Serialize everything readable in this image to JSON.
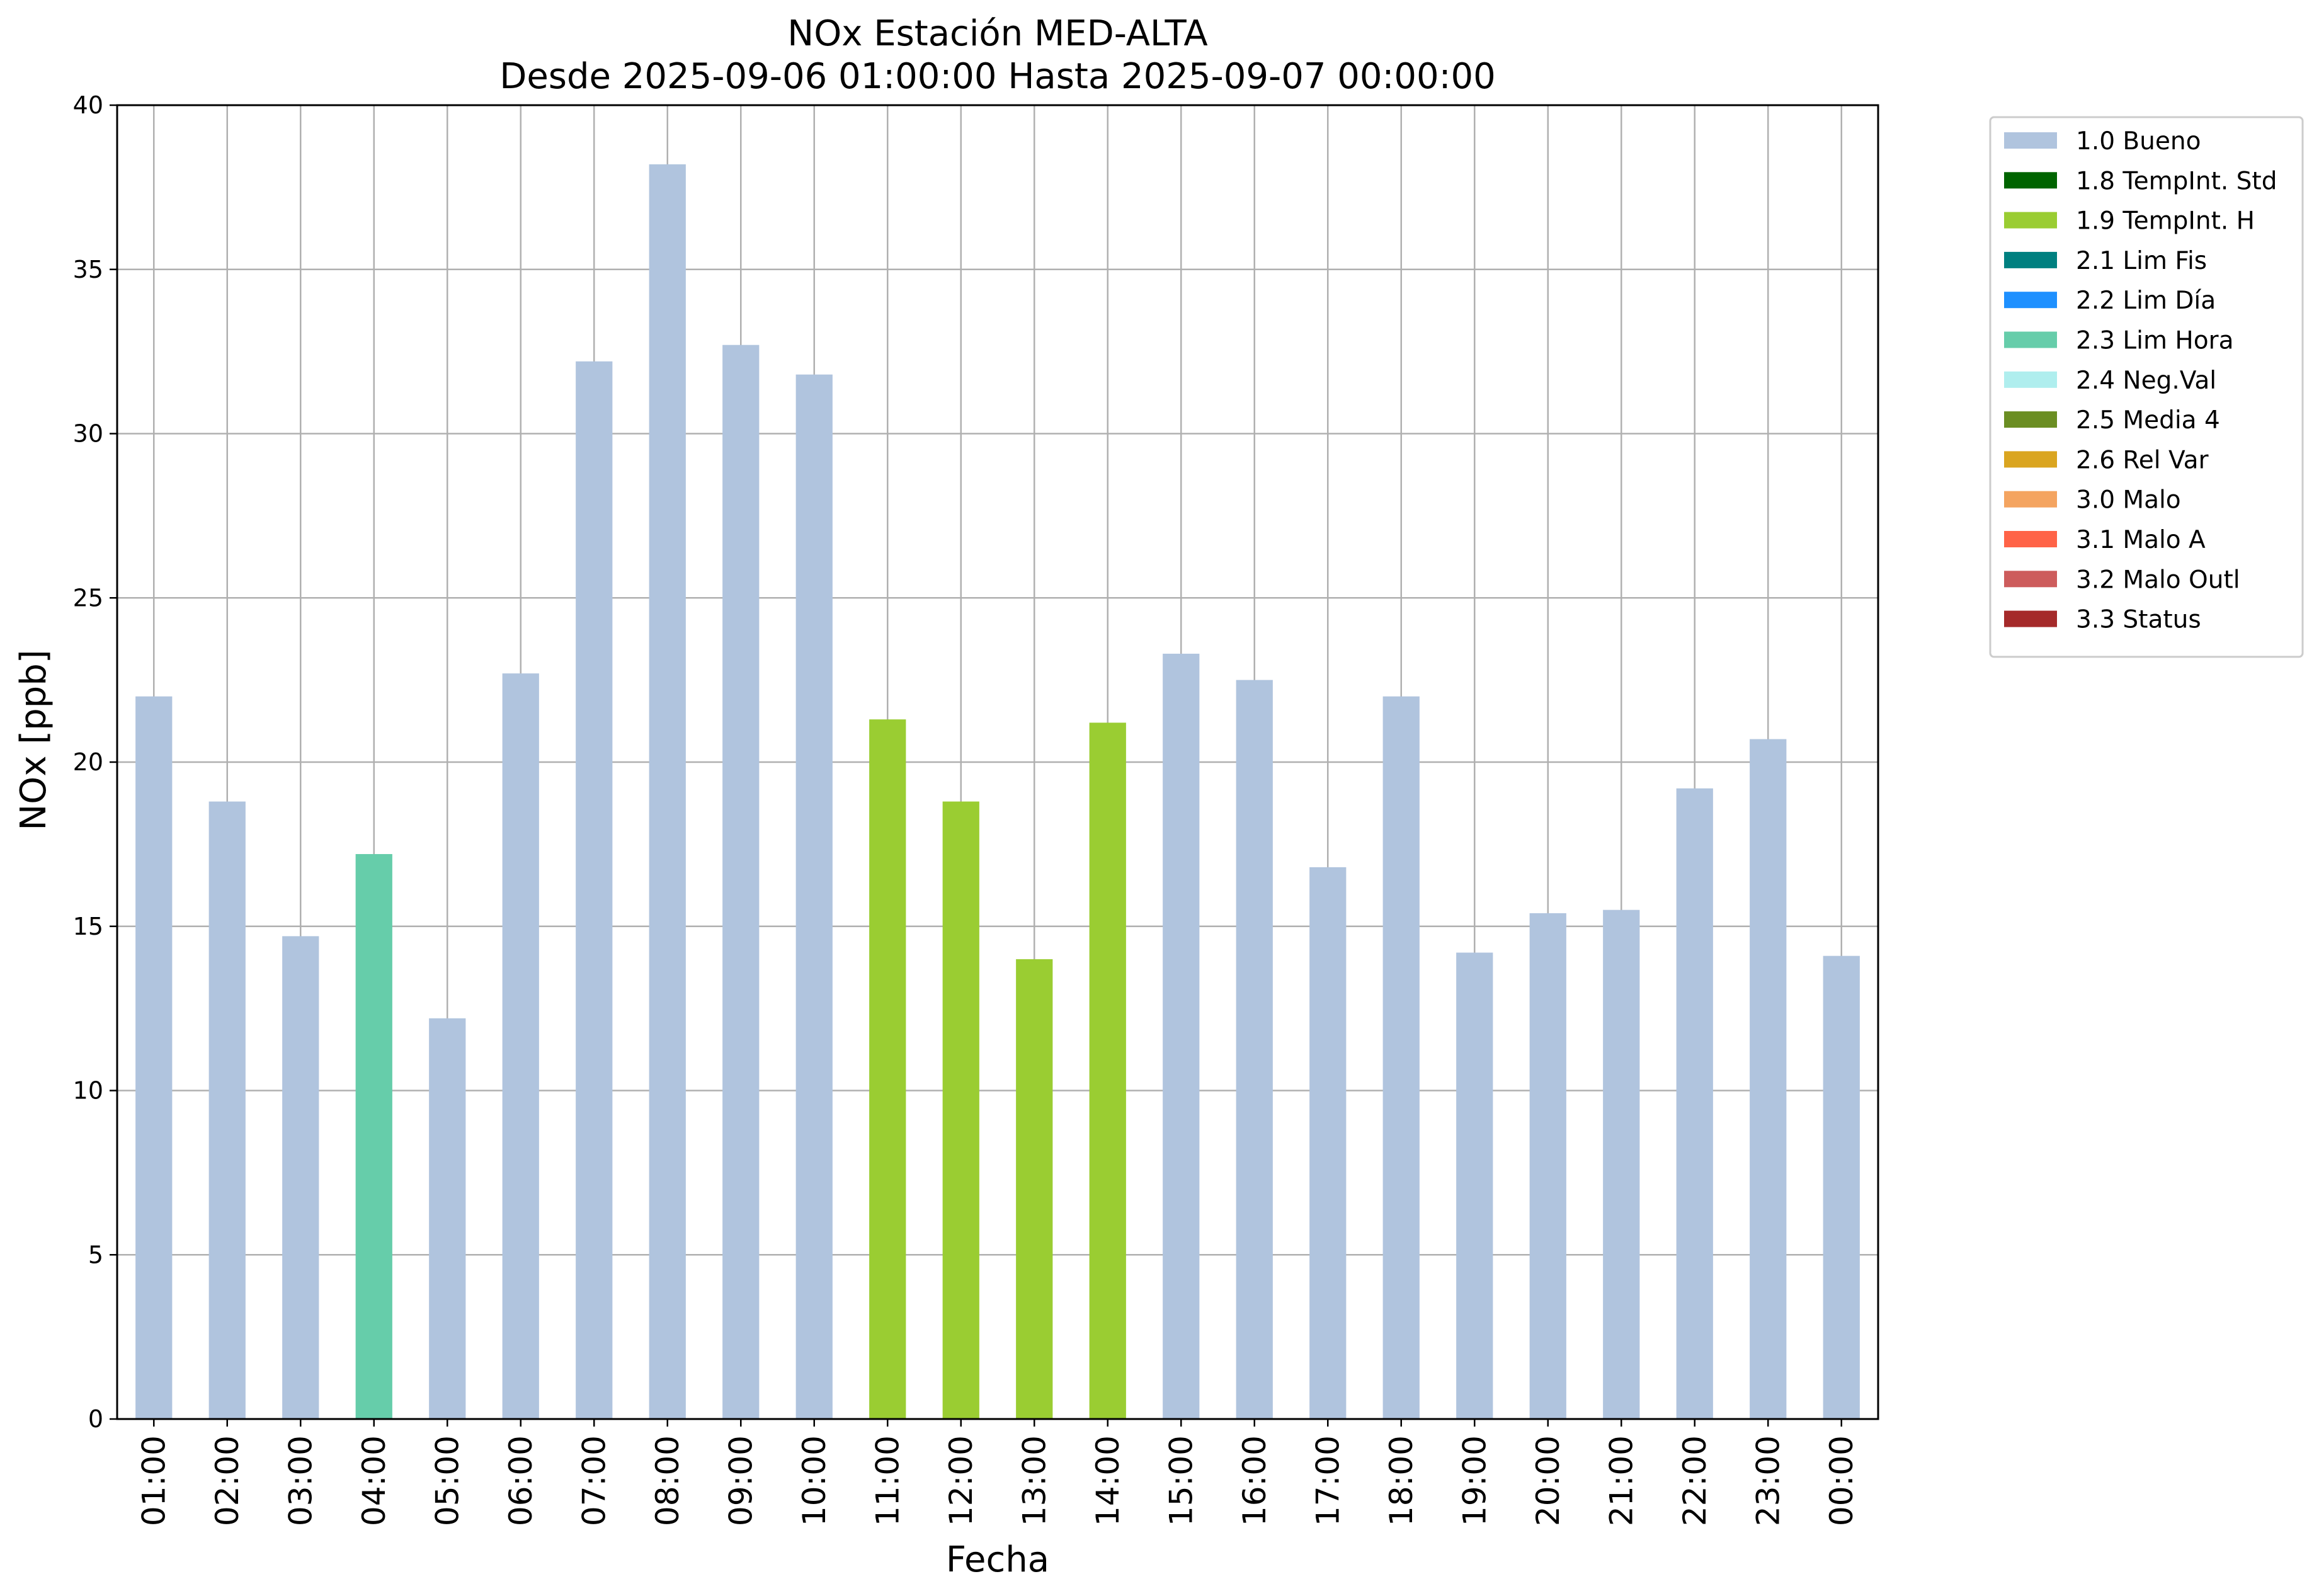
{
  "chart_data": {
    "type": "bar",
    "title": "NOx Estación MED-ALTA",
    "subtitle": "Desde 2025-09-06 01:00:00 Hasta 2025-09-07 00:00:00",
    "xlabel": "Fecha",
    "ylabel": "NOx [ppb]",
    "ylim": [
      0,
      40
    ],
    "yticks": [
      0,
      5,
      10,
      15,
      20,
      25,
      30,
      35,
      40
    ],
    "grid": true,
    "legend_position": "outside-top-right",
    "categories": [
      "01:00",
      "02:00",
      "03:00",
      "04:00",
      "05:00",
      "06:00",
      "07:00",
      "08:00",
      "09:00",
      "10:00",
      "11:00",
      "12:00",
      "13:00",
      "14:00",
      "15:00",
      "16:00",
      "17:00",
      "18:00",
      "19:00",
      "20:00",
      "21:00",
      "22:00",
      "23:00",
      "00:00"
    ],
    "values": [
      22.0,
      18.8,
      14.7,
      17.2,
      12.2,
      22.7,
      32.2,
      38.2,
      32.7,
      31.8,
      21.3,
      18.8,
      14.0,
      21.2,
      23.3,
      22.5,
      16.8,
      22.0,
      14.2,
      15.4,
      15.5,
      19.2,
      20.7,
      14.1
    ],
    "flags": [
      "1.0 Bueno",
      "1.0 Bueno",
      "1.0 Bueno",
      "2.3 Lim Hora",
      "1.0 Bueno",
      "1.0 Bueno",
      "1.0 Bueno",
      "1.0 Bueno",
      "1.0 Bueno",
      "1.0 Bueno",
      "1.9 TempInt. H",
      "1.9 TempInt. H",
      "1.9 TempInt. H",
      "1.9 TempInt. H",
      "1.0 Bueno",
      "1.0 Bueno",
      "1.0 Bueno",
      "1.0 Bueno",
      "1.0 Bueno",
      "1.0 Bueno",
      "1.0 Bueno",
      "1.0 Bueno",
      "1.0 Bueno",
      "1.0 Bueno"
    ],
    "legend": [
      {
        "label": "1.0 Bueno",
        "color": "#b0c4de"
      },
      {
        "label": "1.8 TempInt. Std",
        "color": "#006400"
      },
      {
        "label": "1.9 TempInt. H",
        "color": "#9acd32"
      },
      {
        "label": "2.1 Lim Fis",
        "color": "#008080"
      },
      {
        "label": "2.2 Lim Día",
        "color": "#1e90ff"
      },
      {
        "label": "2.3 Lim Hora",
        "color": "#66cdaa"
      },
      {
        "label": "2.4 Neg.Val",
        "color": "#afeeee"
      },
      {
        "label": "2.5 Media 4",
        "color": "#6b8e23"
      },
      {
        "label": "2.6 Rel Var",
        "color": "#daa520"
      },
      {
        "label": "3.0 Malo",
        "color": "#f4a460"
      },
      {
        "label": "3.1 Malo A",
        "color": "#ff6347"
      },
      {
        "label": "3.2 Malo Outl",
        "color": "#cd5c5c"
      },
      {
        "label": "3.3 Status",
        "color": "#a52a2a"
      }
    ]
  }
}
